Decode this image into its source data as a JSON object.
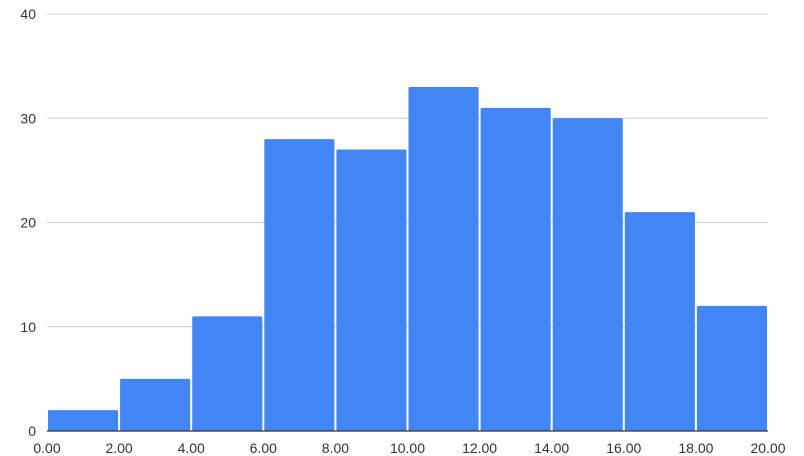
{
  "chart_data": {
    "type": "bar",
    "title": "",
    "xlabel": "",
    "ylabel": "",
    "bins": [
      {
        "start": 0,
        "end": 2,
        "value": 2
      },
      {
        "start": 2,
        "end": 4,
        "value": 5
      },
      {
        "start": 4,
        "end": 6,
        "value": 11
      },
      {
        "start": 6,
        "end": 8,
        "value": 28
      },
      {
        "start": 8,
        "end": 10,
        "value": 27
      },
      {
        "start": 10,
        "end": 12,
        "value": 33
      },
      {
        "start": 12,
        "end": 14,
        "value": 31
      },
      {
        "start": 14,
        "end": 16,
        "value": 30
      },
      {
        "start": 16,
        "end": 18,
        "value": 21
      },
      {
        "start": 18,
        "end": 20,
        "value": 12
      }
    ],
    "x_ticks": [
      "0.00",
      "2.00",
      "4.00",
      "6.00",
      "8.00",
      "10.00",
      "12.00",
      "14.00",
      "16.00",
      "18.00",
      "20.00"
    ],
    "y_ticks": [
      "0",
      "10",
      "20",
      "30",
      "40"
    ],
    "xlim": [
      0,
      20
    ],
    "ylim": [
      0,
      40
    ],
    "grid": true,
    "bar_color": "#4285f4",
    "grid_color": "#cccccc",
    "axis_color": "#333333"
  }
}
